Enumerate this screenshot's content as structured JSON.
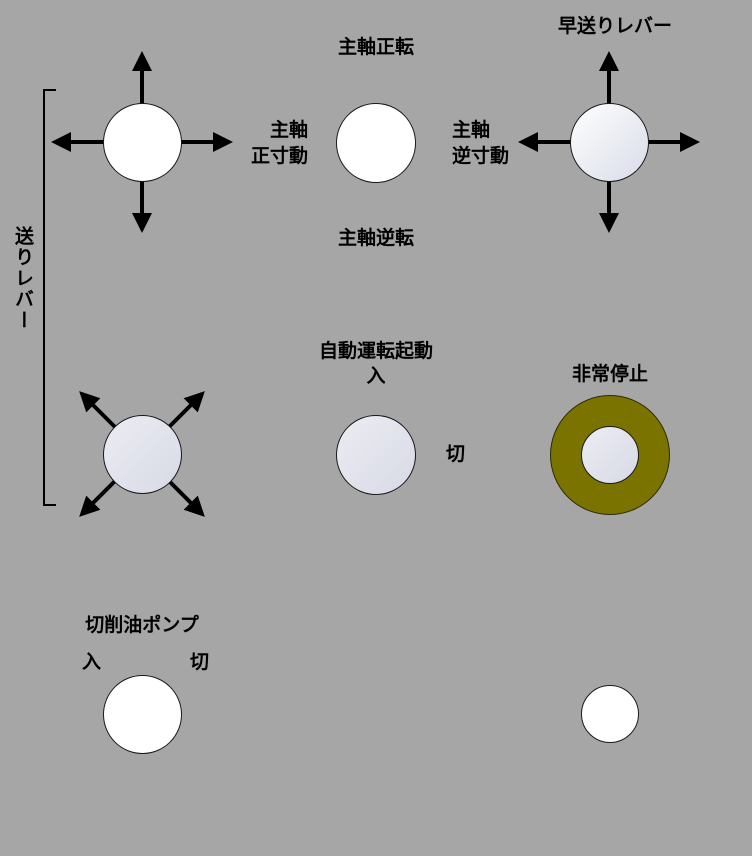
{
  "labels": {
    "spindle_forward": "主軸正転",
    "spindle_reverse": "主軸逆転",
    "spindle_fwd_jog_line1": "主軸",
    "spindle_fwd_jog_line2": "正寸動",
    "spindle_rev_jog_line1": "主軸",
    "spindle_rev_jog_line2": "逆寸動",
    "rapid_lever": "早送りレバー",
    "feed_lever": "送りレバー",
    "auto_start_line1": "自動運転起動",
    "auto_start_on": "入",
    "auto_start_off": "切",
    "emergency_stop": "非常停止",
    "coolant_pump": "切削油ポンプ",
    "coolant_on": "入",
    "coolant_off": "切"
  },
  "colors": {
    "background": "#a6a6a6",
    "emergency_ring": "#7a7300",
    "button_white": "#ffffff",
    "button_pale": "#dcdee8"
  }
}
